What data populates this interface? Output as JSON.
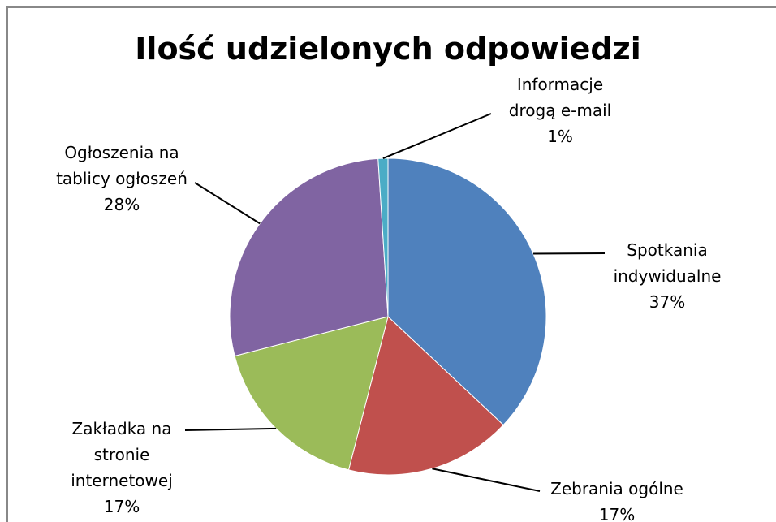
{
  "chart_data": {
    "type": "pie",
    "title": "Ilość udzielonych odpowiedzi",
    "categories": [
      "Spotkania indywidualne",
      "Zebrania ogólne",
      "Zakładka na stronie internetowej",
      "Ogłoszenia na tablicy ogłoszeń",
      "Informacje drogą e-mail"
    ],
    "values": [
      37,
      17,
      17,
      28,
      1
    ],
    "value_labels": [
      "37%",
      "17%",
      "17%",
      "28%",
      "1%"
    ],
    "colors": [
      "#4f81bd",
      "#c0504d",
      "#9bbb59",
      "#8064a2",
      "#4bacc6"
    ]
  }
}
